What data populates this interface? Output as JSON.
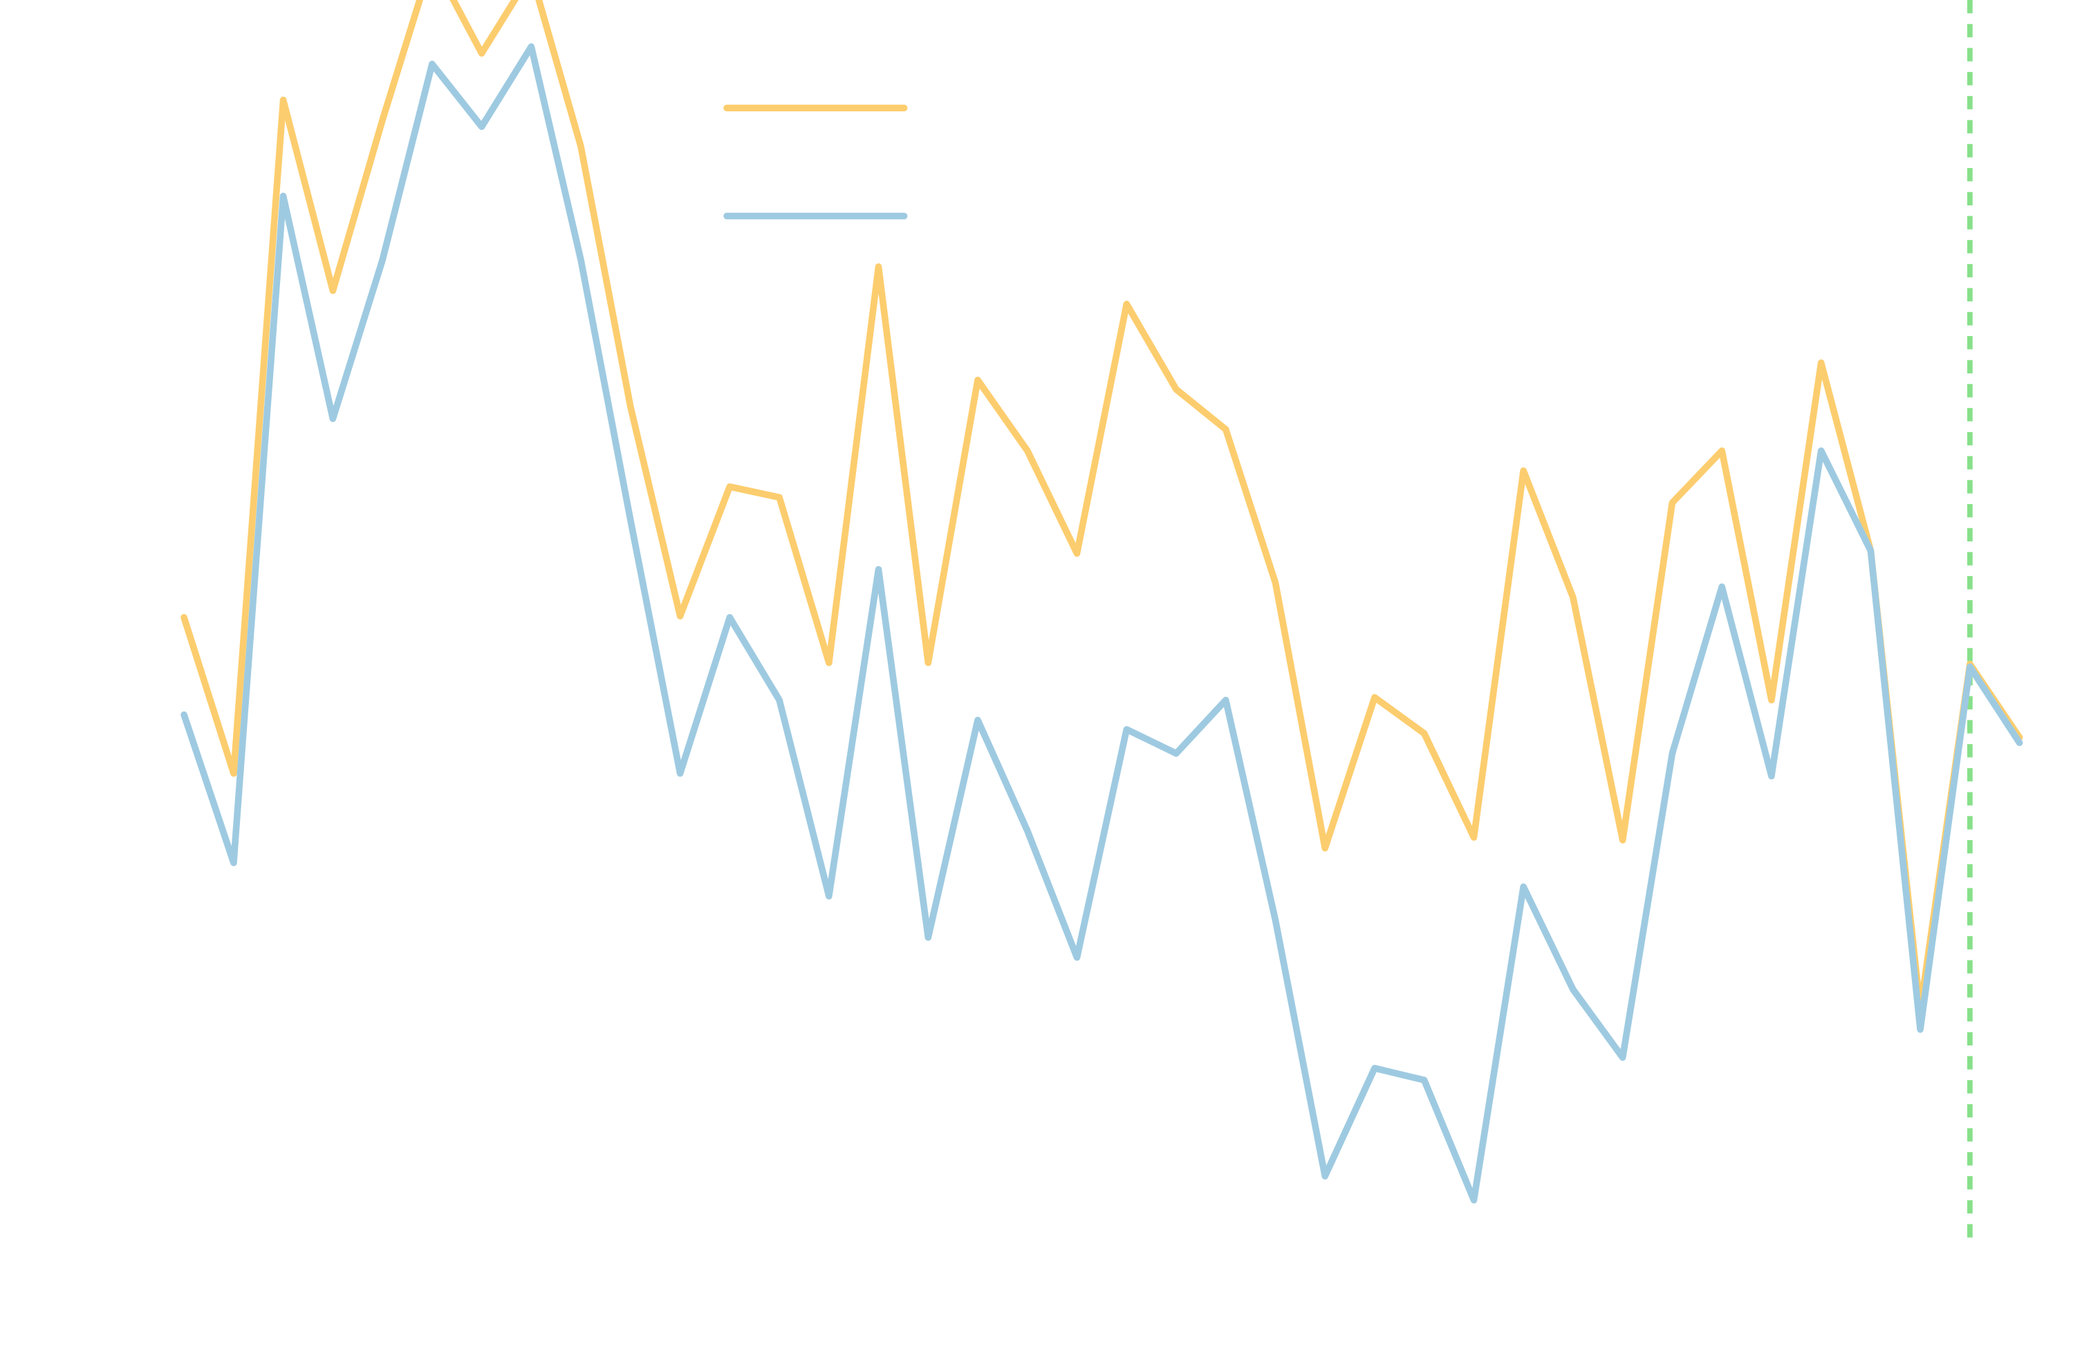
{
  "chart_data": {
    "type": "line",
    "categories": [
      null,
      null,
      null,
      null,
      null,
      null,
      null,
      null,
      null,
      null,
      null,
      null,
      null,
      null,
      null,
      null,
      null,
      null,
      null,
      null,
      null,
      null,
      null,
      null,
      null,
      null,
      null,
      null,
      null,
      null,
      null,
      null,
      null,
      null,
      null,
      null,
      null,
      null
    ],
    "series": [
      {
        "color": "#fccd6e",
        "values": [
          53.7,
          42,
          92.5,
          78.2,
          91,
          103,
          96,
          102,
          89,
          69.5,
          53.8,
          63.5,
          62.7,
          50.3,
          80,
          50.3,
          71.5,
          66.2,
          58.5,
          77.2,
          70.8,
          67.8,
          56.3,
          36.4,
          47.7,
          45,
          37.2,
          64.7,
          55.2,
          37,
          62.3,
          66.2,
          47.5,
          72.8,
          58.7,
          24.3,
          50.2,
          44.7
        ]
      },
      {
        "color": "#9ecae1",
        "values": [
          46.4,
          35.3,
          85.3,
          68.6,
          80.5,
          95.2,
          90.5,
          96.5,
          80.5,
          61,
          42,
          53.7,
          47.5,
          32.8,
          57.3,
          29.7,
          46,
          37.7,
          28.2,
          45.3,
          43.5,
          47.5,
          31,
          11.8,
          19.9,
          19,
          10,
          33.5,
          25.8,
          20.7,
          43.5,
          56,
          41.8,
          66.2,
          58.7,
          22.8,
          50,
          44.3
        ]
      }
    ],
    "ylim": [
      0,
      100
    ],
    "vline": {
      "index": 36,
      "color": "#88e08a",
      "dashed": true
    },
    "legend": "top-center"
  }
}
